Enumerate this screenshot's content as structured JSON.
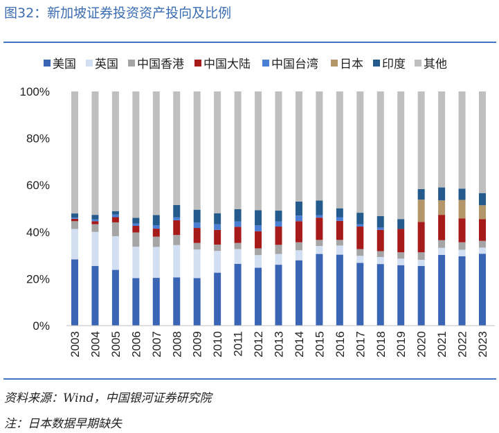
{
  "header": {
    "title": "图32：新加坡证券投资资产投向及比例"
  },
  "footer": {
    "source": "资料来源：Wind，中国银河证券研究院",
    "note": "注：日本数据早期缺失"
  },
  "chart_data": {
    "type": "bar",
    "stacked": true,
    "title": "新加坡证券投资资产投向及比例",
    "xlabel": "",
    "ylabel": "",
    "ylim": [
      0,
      100
    ],
    "y_ticks": [
      "0%",
      "20%",
      "40%",
      "60%",
      "80%",
      "100%"
    ],
    "y_tick_values": [
      0,
      20,
      40,
      60,
      80,
      100
    ],
    "legend_position": "top",
    "categories": [
      "2003",
      "2004",
      "2005",
      "2006",
      "2007",
      "2008",
      "2009",
      "2010",
      "2011",
      "2012",
      "2013",
      "2014",
      "2015",
      "2016",
      "2017",
      "2018",
      "2019",
      "2020",
      "2021",
      "2022",
      "2023"
    ],
    "series": [
      {
        "name": "美国",
        "color": "#3a64b4",
        "values": [
          28.3,
          25.5,
          23.8,
          20.3,
          20.4,
          20.6,
          20.3,
          22.6,
          26.4,
          24.7,
          26.0,
          27.9,
          30.6,
          30.3,
          26.8,
          26.3,
          25.8,
          25.5,
          30.2,
          29.6,
          30.7
        ]
      },
      {
        "name": "英国",
        "color": "#d2dff2",
        "values": [
          13.0,
          14.5,
          14.4,
          13.4,
          13.2,
          13.8,
          12.2,
          9.3,
          6.3,
          5.4,
          4.6,
          4.3,
          3.4,
          3.9,
          3.0,
          3.0,
          2.8,
          2.6,
          3.0,
          2.8,
          2.6
        ]
      },
      {
        "name": "中国香港",
        "color": "#a5a5a5",
        "values": [
          3.3,
          3.3,
          5.9,
          6.1,
          4.4,
          4.3,
          2.8,
          2.7,
          2.6,
          2.9,
          3.9,
          3.4,
          2.6,
          2.4,
          2.9,
          2.5,
          2.7,
          3.2,
          3.3,
          3.2,
          2.9
        ]
      },
      {
        "name": "中国大陆",
        "color": "#a61a1a",
        "values": [
          1.0,
          1.3,
          2.2,
          2.8,
          3.4,
          6.3,
          6.4,
          6.3,
          6.9,
          7.3,
          7.8,
          9.0,
          9.5,
          8.1,
          9.6,
          9.1,
          10.0,
          13.0,
          10.8,
          10.2,
          9.3
        ]
      },
      {
        "name": "中国台湾",
        "color": "#4a7fd4",
        "values": [
          0.5,
          0.8,
          1.1,
          1.0,
          1.5,
          1.2,
          2.3,
          2.4,
          2.3,
          2.5,
          2.2,
          2.4,
          1.1,
          1.6,
          1.0,
          1.0,
          0.0,
          0.0,
          0.0,
          0.0,
          0.0
        ]
      },
      {
        "name": "日本",
        "color": "#b4966b",
        "values": [
          0.0,
          0.0,
          0.0,
          0.0,
          0.0,
          0.0,
          0.0,
          0.0,
          0.0,
          0.0,
          0.0,
          0.0,
          0.0,
          0.0,
          0.0,
          0.0,
          0.0,
          9.5,
          6.2,
          7.9,
          5.9
        ]
      },
      {
        "name": "印度",
        "color": "#255a8c",
        "values": [
          1.8,
          1.9,
          1.5,
          2.4,
          4.3,
          5.3,
          5.5,
          4.7,
          5.2,
          6.5,
          4.6,
          6.0,
          6.2,
          3.8,
          4.9,
          4.9,
          4.2,
          4.5,
          5.5,
          4.8,
          5.2
        ]
      },
      {
        "name": "其他",
        "color": "#bfbfbf",
        "values": [
          52.1,
          52.7,
          51.1,
          54.0,
          52.8,
          48.5,
          50.5,
          52.0,
          50.3,
          50.7,
          50.9,
          47.0,
          46.6,
          49.9,
          51.8,
          53.2,
          54.5,
          41.7,
          41.0,
          41.5,
          43.4
        ]
      }
    ]
  }
}
